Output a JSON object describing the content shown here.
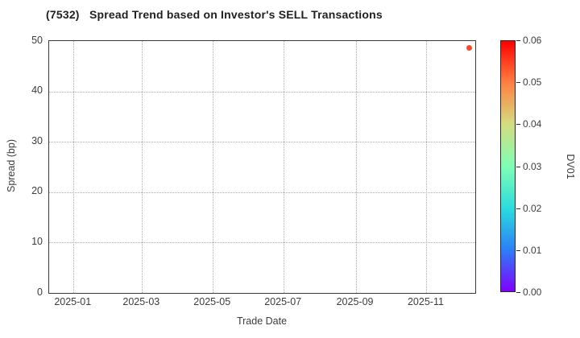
{
  "chart_data": {
    "type": "scatter",
    "title": "(7532)   Spread Trend based on Investor's SELL Transactions",
    "xlabel": "Trade Date",
    "ylabel": "Spread (bp)",
    "x_axis": {
      "type": "date",
      "min": "2024-12-11",
      "max": "2025-12-13",
      "tick_labels": [
        "2025-01",
        "2025-03",
        "2025-05",
        "2025-07",
        "2025-09",
        "2025-11"
      ]
    },
    "y_axis": {
      "min": 0,
      "max": 50,
      "ticks": [
        0,
        10,
        20,
        30,
        40,
        50
      ]
    },
    "grid": {
      "show": true,
      "style": "dotted",
      "color": "#a9a9a9"
    },
    "points": [
      {
        "trade_date": "2025-12-08",
        "spread_bp": 48.7,
        "dv01": 0.054,
        "color": "#fa4b27"
      }
    ],
    "colorbar": {
      "label": "DV01",
      "min": 0.0,
      "max": 0.06,
      "tick_labels": [
        "0.00",
        "0.01",
        "0.02",
        "0.03",
        "0.04",
        "0.05",
        "0.06"
      ],
      "colormap": "rainbow",
      "gradient_stops": [
        {
          "value": 0.0,
          "color": "#8000ff"
        },
        {
          "value": 0.01,
          "color": "#2b80f6"
        },
        {
          "value": 0.02,
          "color": "#2bdddd"
        },
        {
          "value": 0.03,
          "color": "#80ffb4"
        },
        {
          "value": 0.04,
          "color": "#d5dd80"
        },
        {
          "value": 0.05,
          "color": "#ff8042"
        },
        {
          "value": 0.06,
          "color": "#ff0000"
        }
      ]
    }
  }
}
